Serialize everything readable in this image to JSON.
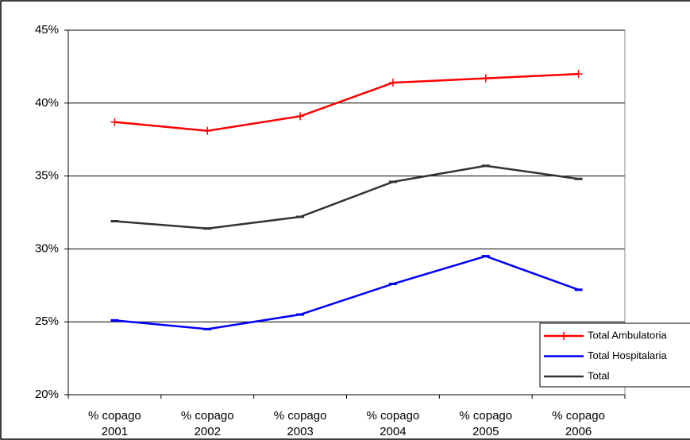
{
  "chart_data": {
    "type": "line",
    "categories": [
      [
        "% copago",
        "2001"
      ],
      [
        "% copago",
        "2002"
      ],
      [
        "% copago",
        "2003"
      ],
      [
        "% copago",
        "2004"
      ],
      [
        "% copago",
        "2005"
      ],
      [
        "% copago",
        "2006"
      ]
    ],
    "series": [
      {
        "name": "Total Ambulatoria",
        "color": "#ff0000",
        "marker": "plus",
        "values": [
          38.7,
          38.1,
          39.1,
          41.4,
          41.7,
          42.0
        ]
      },
      {
        "name": "Total Hospitalaria",
        "color": "#0000ff",
        "marker": "dash",
        "values": [
          25.1,
          24.5,
          25.5,
          27.6,
          29.5,
          27.2
        ]
      },
      {
        "name": "Total",
        "color": "#333333",
        "marker": "dash",
        "values": [
          31.9,
          31.4,
          32.2,
          34.6,
          35.7,
          34.8
        ]
      }
    ],
    "ylim": [
      20,
      45
    ],
    "yticks": [
      {
        "value": 20,
        "label": "20%"
      },
      {
        "value": 25,
        "label": "25%"
      },
      {
        "value": 30,
        "label": "30%"
      },
      {
        "value": 35,
        "label": "35%"
      },
      {
        "value": 40,
        "label": "40%"
      },
      {
        "value": 45,
        "label": "45%"
      }
    ],
    "grid": true,
    "legend": "right"
  }
}
